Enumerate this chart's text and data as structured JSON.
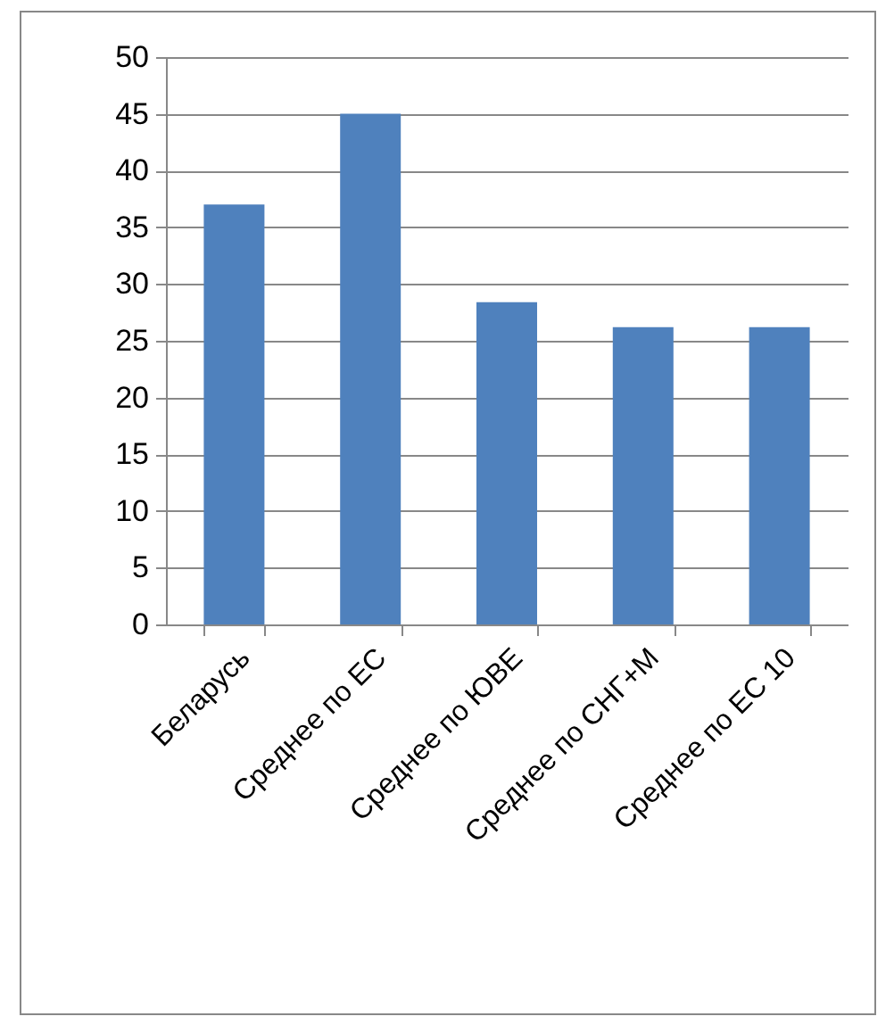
{
  "chart_data": {
    "type": "bar",
    "categories": [
      "Беларусь",
      "Среднее по ЕС",
      "Среднее по ЮВЕ",
      "Среднее по СНГ+М",
      "Среднее по ЕС 10"
    ],
    "values": [
      37,
      45,
      28.4,
      26.2,
      26.2
    ],
    "color": "#4f81bd",
    "ylim": [
      0,
      50
    ],
    "yticks": [
      0,
      5,
      10,
      15,
      20,
      25,
      30,
      35,
      40,
      45,
      50
    ],
    "grid": "y"
  }
}
